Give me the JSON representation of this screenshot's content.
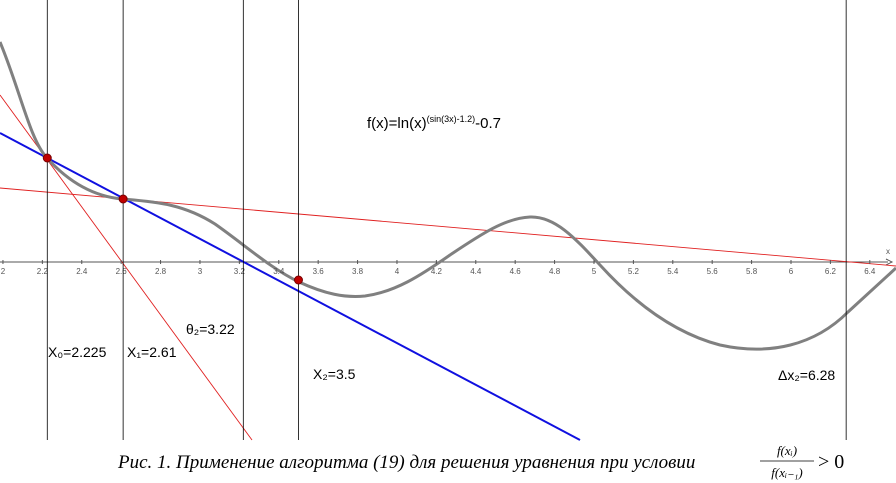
{
  "figure": {
    "formula": {
      "base": "f(x)=ln(x)",
      "exponent": "(sin(3x)-1.2)",
      "tail": "-0.7"
    },
    "axis_label": "x",
    "xlim": [
      1.985,
      6.533
    ],
    "xticks": [
      2,
      2.2,
      2.4,
      2.6,
      2.8,
      3,
      3.2,
      3.4,
      3.6,
      3.8,
      4,
      4.2,
      4.4,
      4.6,
      4.8,
      5,
      5.2,
      5.4,
      5.6,
      5.8,
      6,
      6.2,
      6.4
    ],
    "lines": [
      {
        "value": 2.225,
        "label": "X₀=2.225"
      },
      {
        "value": 2.61,
        "label": "X₁=2.61"
      },
      {
        "value": 3.22,
        "label": "θ₂=3.22"
      },
      {
        "value": 3.5,
        "label": "X₂=3.5"
      },
      {
        "value": 6.28,
        "label": "Δx₂=6.28"
      }
    ],
    "caption": "Рис. 1. Применение алгоритма (19) для решения уравнения при условии",
    "condition": {
      "numerator": "f(xᵢ)",
      "denominator": "f(xᵢ₋₁)",
      "relation": "> 0"
    }
  }
}
